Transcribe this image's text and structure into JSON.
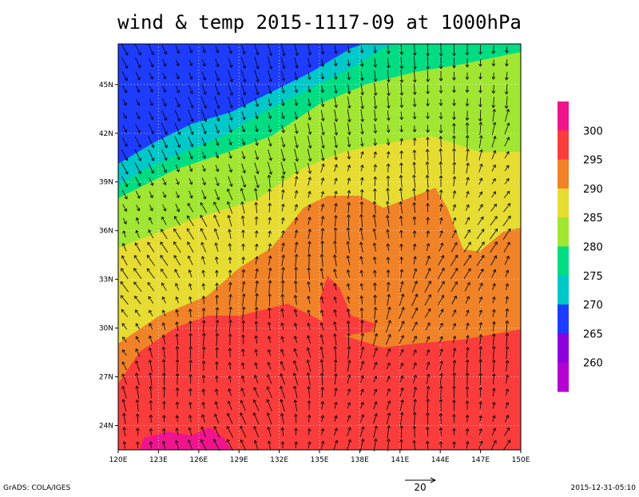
{
  "title": "wind & temp 2015-1117-09 at 1000hPa",
  "map": {
    "xlim": [
      120,
      150
    ],
    "ylim": [
      22.5,
      47.5
    ],
    "x_labels": [
      {
        "value": 120,
        "label": "120E"
      },
      {
        "value": 123,
        "label": "123E"
      },
      {
        "value": 126,
        "label": "126E"
      },
      {
        "value": 129,
        "label": "129E"
      },
      {
        "value": 132,
        "label": "132E"
      },
      {
        "value": 135,
        "label": "135E"
      },
      {
        "value": 138,
        "label": "138E"
      },
      {
        "value": 141,
        "label": "141E"
      },
      {
        "value": 144,
        "label": "144E"
      },
      {
        "value": 147,
        "label": "147E"
      },
      {
        "value": 150,
        "label": "150E"
      }
    ],
    "y_labels": [
      {
        "value": 24,
        "label": "24N"
      },
      {
        "value": 27,
        "label": "27N"
      },
      {
        "value": 30,
        "label": "30N"
      },
      {
        "value": 33,
        "label": "33N"
      },
      {
        "value": 36,
        "label": "36N"
      },
      {
        "value": 39,
        "label": "39N"
      },
      {
        "value": 42,
        "label": "42N"
      },
      {
        "value": 45,
        "label": "45N"
      }
    ]
  },
  "colorbar": {
    "labels": [
      300,
      295,
      290,
      285,
      280,
      275,
      270,
      265,
      260
    ],
    "colors": [
      "#f0148c",
      "#fa3c3c",
      "#f08228",
      "#e6dc32",
      "#a0e632",
      "#00dc82",
      "#00c8c8",
      "#1e3cff",
      "#8c00dc",
      "#b400d2"
    ]
  },
  "vector_scale": "20",
  "footer_left": "GrADS: COLA/IGES",
  "footer_right": "2015-12-31-05:10"
}
